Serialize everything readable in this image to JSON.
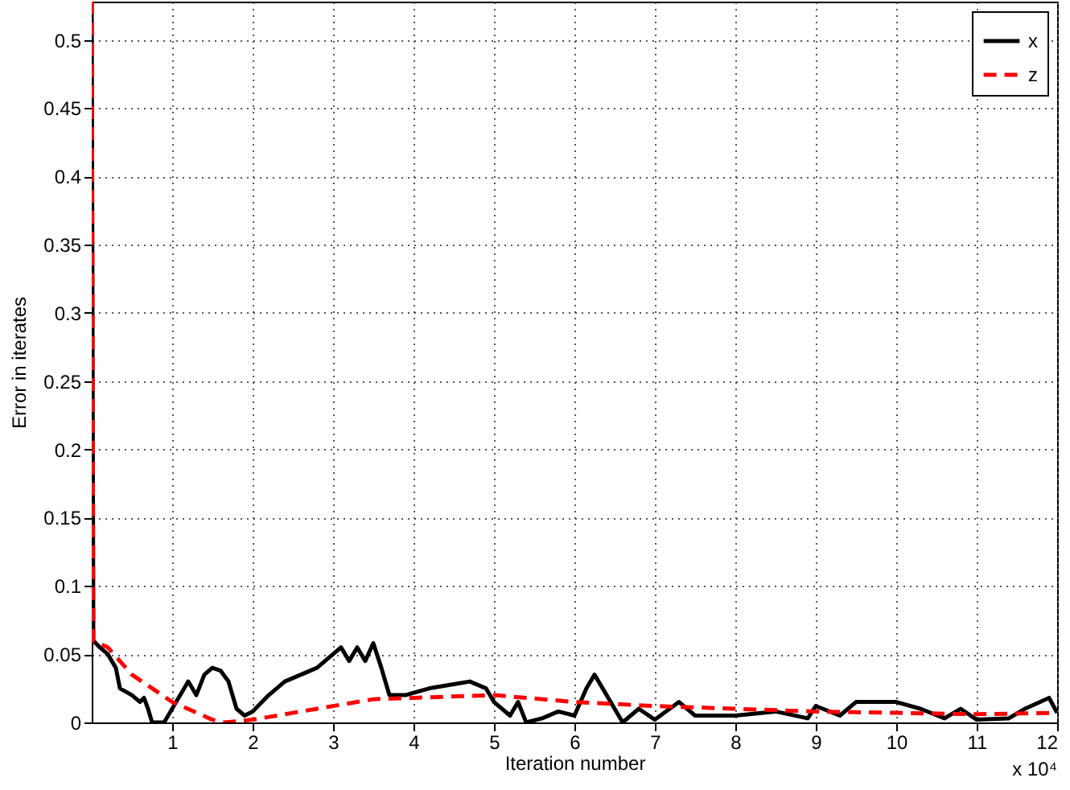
{
  "chart_data": {
    "type": "line",
    "xlabel": "Iteration number",
    "ylabel": "Error in iterates",
    "annotations": [
      "x 10⁴"
    ],
    "xlim": [
      0,
      12
    ],
    "xticks": [
      1,
      2,
      3,
      4,
      5,
      6,
      7,
      8,
      9,
      10,
      11,
      12
    ],
    "ylim": [
      0,
      0.528
    ],
    "yticks": [
      0,
      0.05,
      0.1,
      0.15,
      0.2,
      0.25,
      0.3,
      0.35,
      0.4,
      0.45,
      0.5
    ],
    "grid": true,
    "legend": "top right",
    "marker": "none",
    "series": [
      {
        "name": "x",
        "color": "#000000",
        "line_style": "solid",
        "x": [
          0,
          0.02,
          0.1,
          0.2,
          0.3,
          0.35,
          0.5,
          0.6,
          0.65,
          0.7,
          0.75,
          0.9,
          1.0,
          1.1,
          1.2,
          1.3,
          1.4,
          1.5,
          1.6,
          1.7,
          1.8,
          1.9,
          2.0,
          2.2,
          2.4,
          2.6,
          2.8,
          2.9,
          3.0,
          3.1,
          3.2,
          3.3,
          3.4,
          3.5,
          3.6,
          3.7,
          3.9,
          4.2,
          4.5,
          4.7,
          4.9,
          5.0,
          5.2,
          5.3,
          5.4,
          5.6,
          5.8,
          6.0,
          6.15,
          6.25,
          6.4,
          6.6,
          6.8,
          7.0,
          7.3,
          7.5,
          8.0,
          8.5,
          8.9,
          9.0,
          9.3,
          9.5,
          9.8,
          10.0,
          10.3,
          10.6,
          10.8,
          11.0,
          11.4,
          11.6,
          11.9,
          12
        ],
        "values": [
          0.528,
          0.06,
          0.055,
          0.05,
          0.04,
          0.025,
          0.02,
          0.015,
          0.018,
          0.01,
          0.0,
          0.0,
          0.01,
          0.02,
          0.03,
          0.02,
          0.035,
          0.04,
          0.038,
          0.03,
          0.01,
          0.005,
          0.008,
          0.02,
          0.03,
          0.035,
          0.04,
          0.045,
          0.05,
          0.055,
          0.045,
          0.055,
          0.045,
          0.058,
          0.04,
          0.02,
          0.02,
          0.025,
          0.028,
          0.03,
          0.025,
          0.015,
          0.005,
          0.015,
          0.0,
          0.003,
          0.008,
          0.005,
          0.025,
          0.035,
          0.02,
          0.0,
          0.01,
          0.002,
          0.015,
          0.005,
          0.005,
          0.008,
          0.003,
          0.012,
          0.005,
          0.015,
          0.015,
          0.015,
          0.01,
          0.003,
          0.01,
          0.002,
          0.003,
          0.01,
          0.018,
          0.007
        ]
      },
      {
        "name": "z",
        "color": "#ff0000",
        "line_style": "dashed",
        "x": [
          0,
          0.02,
          0.2,
          0.5,
          1.0,
          1.5,
          1.65,
          2.0,
          2.5,
          3.0,
          3.5,
          4.0,
          5.0,
          6.0,
          7.0,
          8.0,
          9.0,
          10.0,
          11.0,
          12.0
        ],
        "values": [
          0.528,
          0.06,
          0.055,
          0.035,
          0.015,
          0.002,
          0,
          0.002,
          0.007,
          0.012,
          0.017,
          0.018,
          0.02,
          0.015,
          0.012,
          0.01,
          0.008,
          0.007,
          0.006,
          0.007
        ]
      }
    ]
  }
}
